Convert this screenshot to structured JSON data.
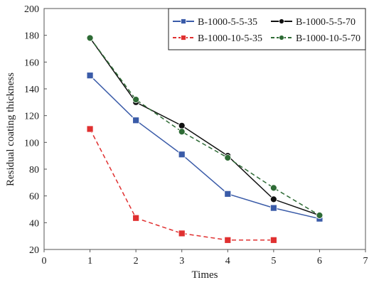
{
  "chart_data": {
    "type": "line",
    "xlabel": "Times",
    "ylabel": "Residual coating thickness",
    "xlim": [
      0,
      7
    ],
    "ylim": [
      20,
      200
    ],
    "x_ticks": [
      "0",
      "1",
      "2",
      "3",
      "4",
      "5",
      "6",
      "7"
    ],
    "y_ticks": [
      "20",
      "40",
      "60",
      "80",
      "100",
      "120",
      "140",
      "160",
      "180",
      "200"
    ],
    "grid": false,
    "legend_position": "top-right",
    "series": [
      {
        "name": "B-1000-5-5-35",
        "color": "#3a5ba8",
        "line_style": "solid",
        "marker": "square",
        "x": [
          1,
          2,
          3,
          4,
          5,
          6
        ],
        "y": [
          150,
          116.5,
          91,
          61.5,
          51,
          43
        ]
      },
      {
        "name": "B-1000-5-5-70",
        "color": "#111111",
        "line_style": "solid",
        "marker": "circle",
        "x": [
          1,
          2,
          3,
          4,
          5,
          6
        ],
        "y": [
          178,
          130,
          112.5,
          90,
          57.5,
          45.5
        ]
      },
      {
        "name": "B-1000-10-5-35",
        "color": "#e03030",
        "line_style": "dashed",
        "marker": "square",
        "x": [
          1,
          2,
          3,
          4,
          5
        ],
        "y": [
          110,
          43.5,
          32,
          27,
          27
        ]
      },
      {
        "name": "B-1000-10-5-70",
        "color": "#2e6b35",
        "line_style": "dashed",
        "marker": "circle",
        "x": [
          1,
          2,
          3,
          4,
          5,
          6
        ],
        "y": [
          178,
          132,
          108,
          88.5,
          66,
          45.5
        ]
      }
    ]
  }
}
